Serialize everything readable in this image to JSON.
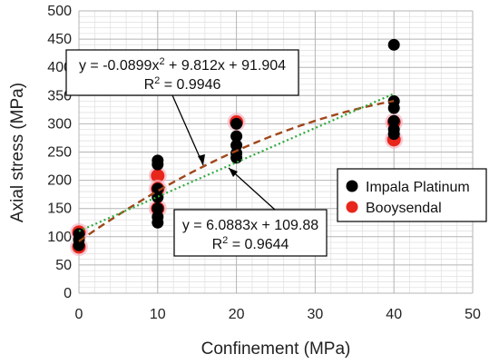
{
  "chart_data": {
    "type": "scatter",
    "title": "",
    "xlabel": "Confinement (MPa)",
    "ylabel": "Axial stress (MPa)",
    "xlim": [
      0,
      50
    ],
    "ylim": [
      0,
      500
    ],
    "xticks": [
      0,
      10,
      20,
      30,
      40,
      50
    ],
    "yticks": [
      0,
      50,
      100,
      150,
      200,
      250,
      300,
      350,
      400,
      450,
      500
    ],
    "grid": true,
    "legend_position": "right",
    "series": [
      {
        "name": "Impala Platinum",
        "color": "#000000",
        "points": [
          {
            "x": 0,
            "y": 105
          },
          {
            "x": 0,
            "y": 95
          },
          {
            "x": 0,
            "y": 85
          },
          {
            "x": 10,
            "y": 235
          },
          {
            "x": 10,
            "y": 228
          },
          {
            "x": 10,
            "y": 185
          },
          {
            "x": 10,
            "y": 170
          },
          {
            "x": 10,
            "y": 150
          },
          {
            "x": 10,
            "y": 135
          },
          {
            "x": 10,
            "y": 125
          },
          {
            "x": 20,
            "y": 300
          },
          {
            "x": 20,
            "y": 278
          },
          {
            "x": 20,
            "y": 262
          },
          {
            "x": 20,
            "y": 248
          },
          {
            "x": 20,
            "y": 240
          },
          {
            "x": 40,
            "y": 440
          },
          {
            "x": 40,
            "y": 340
          },
          {
            "x": 40,
            "y": 328
          },
          {
            "x": 40,
            "y": 305
          },
          {
            "x": 40,
            "y": 290
          },
          {
            "x": 40,
            "y": 282
          }
        ]
      },
      {
        "name": "Booysendal",
        "color": "#e8261c",
        "points": [
          {
            "x": 0,
            "y": 108
          },
          {
            "x": 0,
            "y": 82
          },
          {
            "x": 10,
            "y": 208
          },
          {
            "x": 10,
            "y": 185
          },
          {
            "x": 10,
            "y": 150
          },
          {
            "x": 20,
            "y": 303
          },
          {
            "x": 40,
            "y": 303
          },
          {
            "x": 40,
            "y": 272
          }
        ]
      }
    ],
    "trendlines": [
      {
        "kind": "quadratic",
        "coefficients": [
          -0.0899,
          9.812,
          91.904
        ],
        "color": "#a0461a",
        "equation": "y = -0.0899x",
        "equation_sup": "2",
        "equation_tail": " + 9.812x + 91.904",
        "r2": "R",
        "r2_sup": "2",
        "r2_tail": " = 0.9946"
      },
      {
        "kind": "linear",
        "coefficients": [
          6.0883,
          109.88
        ],
        "color": "#2eaa3c",
        "equation": "y = 6.0883x + 109.88",
        "r2": "R",
        "r2_sup": "2",
        "r2_tail": " = 0.9644"
      }
    ]
  }
}
